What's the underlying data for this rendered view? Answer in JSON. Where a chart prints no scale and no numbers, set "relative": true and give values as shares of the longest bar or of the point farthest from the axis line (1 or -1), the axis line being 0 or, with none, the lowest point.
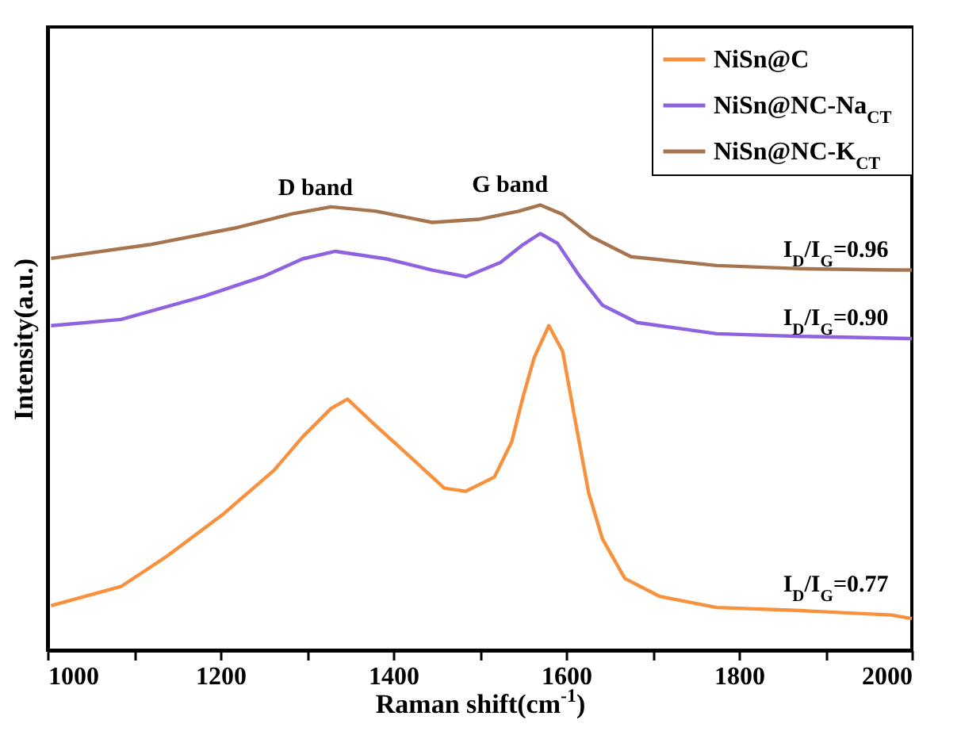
{
  "chart_data": {
    "type": "line",
    "relative": true,
    "xlabel": "Raman shift(cm$^{-1}$)",
    "ylabel": "Intensity(a.u.)",
    "xlim": [
      1000,
      2000
    ],
    "xticks": [
      1000,
      {
        "value": 1100,
        "label": null
      },
      1200,
      {
        "value": 1300,
        "label": null
      },
      1400,
      {
        "value": 1500,
        "label": null
      },
      1600,
      {
        "value": 1700,
        "label": null
      },
      1800,
      {
        "value": 1900,
        "label": null
      },
      2000
    ],
    "grid": false,
    "legend": "top right",
    "series": [
      {
        "name": "NiSn@C",
        "color": "#f7913d",
        "x": [
          1004,
          1085,
          1138,
          1204,
          1262,
          1295,
          1328,
          1347,
          1380,
          1413,
          1459,
          1484,
          1517,
          1537,
          1550,
          1563,
          1580,
          1596,
          1609,
          1626,
          1642,
          1668,
          1708,
          1774,
          1871,
          1976,
          2000
        ],
        "values": [
          0.1,
          0.143,
          0.211,
          0.307,
          0.404,
          0.479,
          0.543,
          0.564,
          0.504,
          0.446,
          0.364,
          0.357,
          0.389,
          0.468,
          0.568,
          0.657,
          0.729,
          0.671,
          0.532,
          0.354,
          0.25,
          0.161,
          0.121,
          0.096,
          0.089,
          0.079,
          0.071
        ]
      },
      {
        "name": "NiSn@NC-Na$_{CT}$",
        "color": "#8f63e0",
        "x": [
          1004,
          1085,
          1181,
          1249,
          1295,
          1333,
          1392,
          1445,
          1484,
          1524,
          1550,
          1570,
          1590,
          1616,
          1642,
          1682,
          1774,
          1871,
          1976,
          2000
        ],
        "values": [
          0.729,
          0.743,
          0.795,
          0.839,
          0.879,
          0.896,
          0.879,
          0.854,
          0.839,
          0.871,
          0.911,
          0.936,
          0.914,
          0.839,
          0.775,
          0.736,
          0.711,
          0.705,
          0.701,
          0.7
        ]
      },
      {
        "name": "NiSn@NC-K$_{CT}$",
        "color": "#a67550",
        "x": [
          1004,
          1118,
          1216,
          1282,
          1328,
          1380,
          1445,
          1499,
          1545,
          1570,
          1596,
          1629,
          1675,
          1774,
          1871,
          1976,
          2000
        ],
        "values": [
          0.88,
          0.911,
          0.948,
          0.98,
          0.996,
          0.986,
          0.961,
          0.968,
          0.986,
          1.0,
          0.979,
          0.929,
          0.884,
          0.864,
          0.857,
          0.854,
          0.854
        ]
      }
    ],
    "annotations": [
      "D band",
      "G band",
      "I$_{D}$/I$_{G}$=0.96",
      "I$_{D}$/I$_{G}$=0.90",
      "I$_{D}$/I$_{G}$=0.77"
    ]
  }
}
